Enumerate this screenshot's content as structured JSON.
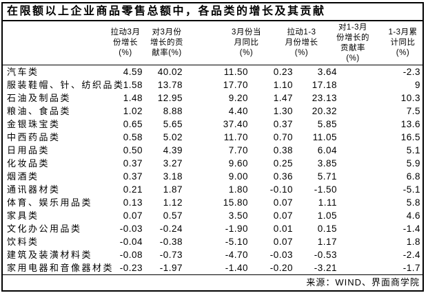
{
  "title": "在限额以上企业商品零售总额中，各品类的增长及其贡献",
  "source": "来源：WIND、界面商学院",
  "table": {
    "header_lines": [
      [],
      [
        "拉动3月",
        "份增长",
        "(%)"
      ],
      [
        "对3月份",
        "增长的贡",
        "献率(%)"
      ],
      [
        "3月份当",
        "月同比",
        "(%)"
      ],
      [
        "拉动1-3",
        "月份增长",
        "(%)"
      ],
      [
        "对1-3月",
        "份增长的",
        "贡献率",
        "(%)"
      ],
      [
        "1-3月累",
        "计同比",
        "(%)"
      ]
    ],
    "rows": [
      {
        "category": "汽车类",
        "values": [
          "4.59",
          "40.02",
          "11.50",
          "0.23",
          "3.64",
          "-2.3"
        ]
      },
      {
        "category": "服装鞋帽、针、纺织品类",
        "values": [
          "1.58",
          "13.78",
          "17.70",
          "1.10",
          "17.18",
          "9"
        ]
      },
      {
        "category": "石油及制品类",
        "values": [
          "1.48",
          "12.95",
          "9.20",
          "1.47",
          "23.13",
          "10.3"
        ]
      },
      {
        "category": "粮油、食品类",
        "values": [
          "1.02",
          "8.88",
          "4.40",
          "1.30",
          "20.32",
          "7.5"
        ]
      },
      {
        "category": "金银珠宝类",
        "values": [
          "0.65",
          "5.65",
          "37.40",
          "0.37",
          "5.85",
          "13.6"
        ]
      },
      {
        "category": "中西药品类",
        "values": [
          "0.58",
          "5.02",
          "11.70",
          "0.70",
          "11.05",
          "16.5"
        ]
      },
      {
        "category": "日用品类",
        "values": [
          "0.50",
          "4.39",
          "7.70",
          "0.38",
          "6.04",
          "5.1"
        ]
      },
      {
        "category": "化妆品类",
        "values": [
          "0.37",
          "3.27",
          "9.60",
          "0.25",
          "3.85",
          "5.9"
        ]
      },
      {
        "category": "烟酒类",
        "values": [
          "0.37",
          "3.18",
          "9.00",
          "0.36",
          "5.71",
          "6.8"
        ]
      },
      {
        "category": "通讯器材类",
        "values": [
          "0.21",
          "1.87",
          "1.80",
          "-0.10",
          "-1.50",
          "-5.1"
        ]
      },
      {
        "category": "体育、娱乐用品类",
        "values": [
          "0.13",
          "1.12",
          "15.80",
          "0.07",
          "1.11",
          "5.8"
        ]
      },
      {
        "category": "家具类",
        "values": [
          "0.07",
          "0.57",
          "3.50",
          "0.07",
          "1.05",
          "4.6"
        ]
      },
      {
        "category": "文化办公用品类",
        "values": [
          "-0.03",
          "-0.24",
          "-1.90",
          "0.01",
          "0.15",
          "-1.4"
        ]
      },
      {
        "category": "饮料类",
        "values": [
          "-0.04",
          "-0.38",
          "-5.10",
          "0.07",
          "1.17",
          "1.8"
        ]
      },
      {
        "category": "建筑及装潢材料类",
        "values": [
          "-0.08",
          "-0.73",
          "-4.70",
          "-0.03",
          "-0.53",
          "-2.4"
        ]
      },
      {
        "category": "家用电器和音像器材类",
        "values": [
          "-0.23",
          "-1.97",
          "-1.40",
          "-0.20",
          "-3.21",
          "-1.7"
        ]
      }
    ]
  },
  "chart_data": {
    "type": "table",
    "title": "在限额以上企业商品零售总额中，各品类的增长及其贡献",
    "columns": [
      "",
      "拉动3月份增长(%)",
      "对3月份增长的贡献率(%)",
      "3月份当月同比(%)",
      "拉动1-3月份增长(%)",
      "对1-3月份增长的贡献率(%)",
      "1-3月累计同比(%)"
    ],
    "rows": [
      [
        "汽车类",
        4.59,
        40.02,
        11.5,
        0.23,
        3.64,
        -2.3
      ],
      [
        "服装鞋帽、针、纺织品类",
        1.58,
        13.78,
        17.7,
        1.1,
        17.18,
        9
      ],
      [
        "石油及制品类",
        1.48,
        12.95,
        9.2,
        1.47,
        23.13,
        10.3
      ],
      [
        "粮油、食品类",
        1.02,
        8.88,
        4.4,
        1.3,
        20.32,
        7.5
      ],
      [
        "金银珠宝类",
        0.65,
        5.65,
        37.4,
        0.37,
        5.85,
        13.6
      ],
      [
        "中西药品类",
        0.58,
        5.02,
        11.7,
        0.7,
        11.05,
        16.5
      ],
      [
        "日用品类",
        0.5,
        4.39,
        7.7,
        0.38,
        6.04,
        5.1
      ],
      [
        "化妆品类",
        0.37,
        3.27,
        9.6,
        0.25,
        3.85,
        5.9
      ],
      [
        "烟酒类",
        0.37,
        3.18,
        9.0,
        0.36,
        5.71,
        6.8
      ],
      [
        "通讯器材类",
        0.21,
        1.87,
        1.8,
        -0.1,
        -1.5,
        -5.1
      ],
      [
        "体育、娱乐用品类",
        0.13,
        1.12,
        15.8,
        0.07,
        1.11,
        5.8
      ],
      [
        "家具类",
        0.07,
        0.57,
        3.5,
        0.07,
        1.05,
        4.6
      ],
      [
        "文化办公用品类",
        -0.03,
        -0.24,
        -1.9,
        0.01,
        0.15,
        -1.4
      ],
      [
        "饮料类",
        -0.04,
        -0.38,
        -5.1,
        0.07,
        1.17,
        1.8
      ],
      [
        "建筑及装潢材料类",
        -0.08,
        -0.73,
        -4.7,
        -0.03,
        -0.53,
        -2.4
      ],
      [
        "家用电器和音像器材类",
        -0.23,
        -1.97,
        -1.4,
        -0.2,
        -3.21,
        -1.7
      ]
    ],
    "source": "来源：WIND、界面商学院"
  }
}
